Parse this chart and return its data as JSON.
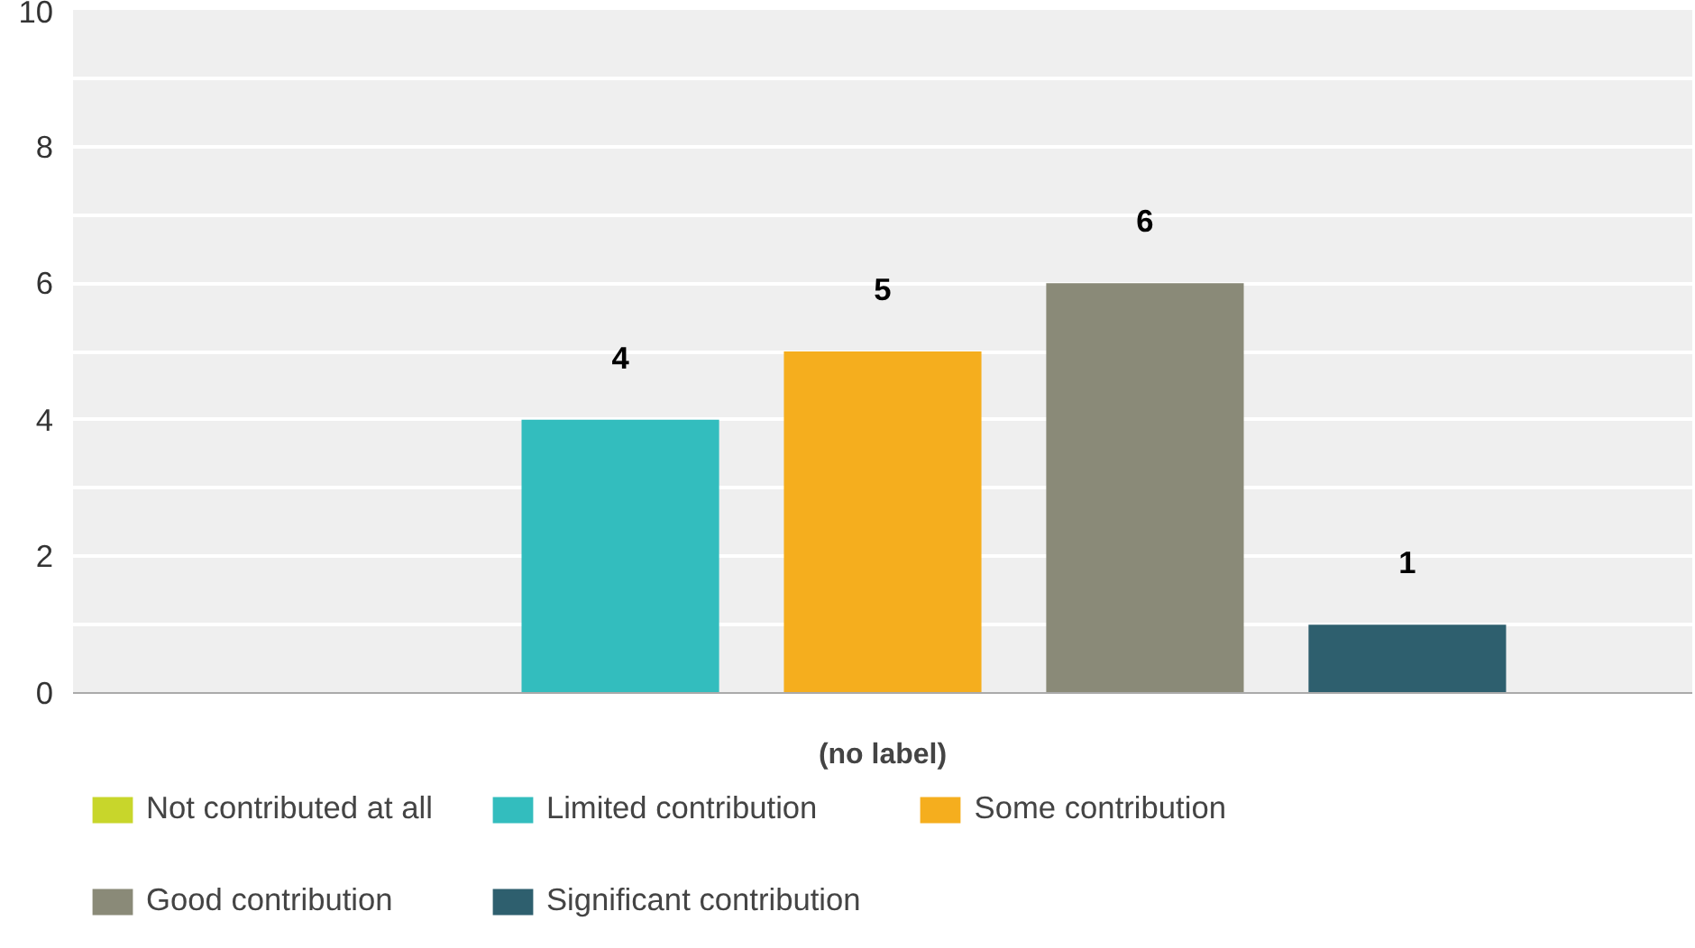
{
  "chart_data": {
    "type": "bar",
    "categories": [
      "(no label)"
    ],
    "series": [
      {
        "name": "Not contributed at all",
        "color": "#c8d62b",
        "values": [
          0
        ],
        "value_labels": [
          null
        ]
      },
      {
        "name": "Limited contribution",
        "color": "#33bdbe",
        "values": [
          4
        ],
        "value_labels": [
          "4"
        ]
      },
      {
        "name": "Some contribution",
        "color": "#f5ae1e",
        "values": [
          5
        ],
        "value_labels": [
          "5"
        ]
      },
      {
        "name": "Good contribution",
        "color": "#8a8a78",
        "values": [
          6
        ],
        "value_labels": [
          "6"
        ]
      },
      {
        "name": "Significant contribution",
        "color": "#2e5f6e",
        "values": [
          1
        ],
        "value_labels": [
          "1"
        ]
      }
    ],
    "ylim": [
      0,
      10
    ],
    "yticks": [
      0,
      {
        "value": 1,
        "label": null
      },
      2,
      {
        "value": 3,
        "label": null
      },
      4,
      {
        "value": 5,
        "label": null
      },
      6,
      {
        "value": 7,
        "label": null
      },
      8,
      {
        "value": 9,
        "label": null
      },
      10
    ],
    "grid": "y",
    "legend": "bottom"
  }
}
